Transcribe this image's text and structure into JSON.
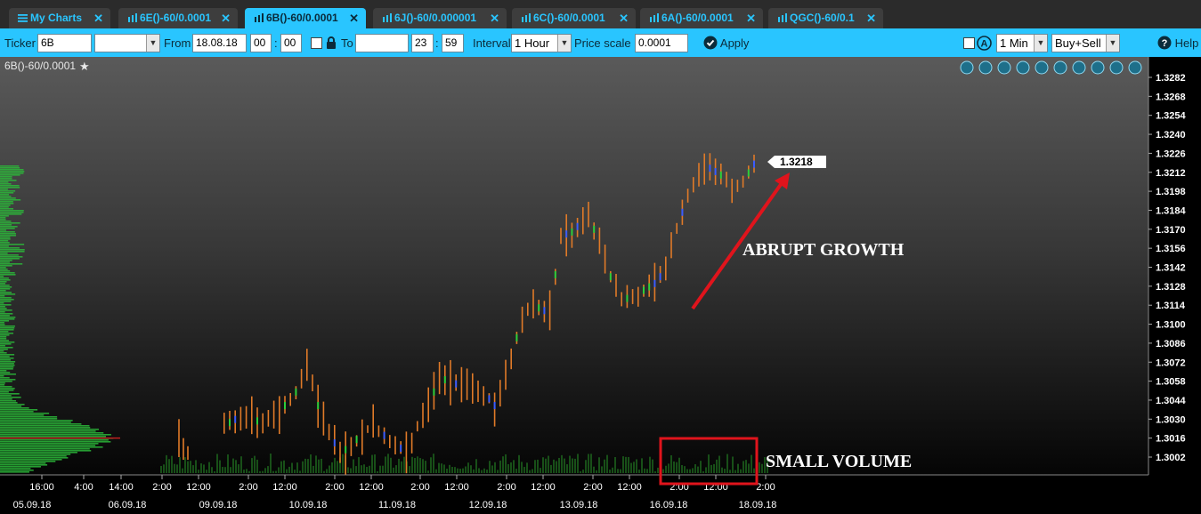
{
  "tabs": [
    {
      "label": "My Charts",
      "icon": "list-icon",
      "active": false
    },
    {
      "label": "6E()-60/0.0001",
      "icon": "bar-chart-icon",
      "active": false
    },
    {
      "label": "6B()-60/0.0001",
      "icon": "bar-chart-icon",
      "active": true
    },
    {
      "label": "6J()-60/0.000001",
      "icon": "bar-chart-icon",
      "active": false
    },
    {
      "label": "6C()-60/0.0001",
      "icon": "bar-chart-icon",
      "active": false
    },
    {
      "label": "6A()-60/0.0001",
      "icon": "bar-chart-icon",
      "active": false
    },
    {
      "label": "QGC()-60/0.1",
      "icon": "bar-chart-icon",
      "active": false
    }
  ],
  "toolbar": {
    "ticker_label": "Ticker",
    "ticker_value": "6B",
    "ticker_dropdown_value": "",
    "from_label": "From",
    "from_date": "18.08.18",
    "from_hour": "00",
    "from_minute": "00",
    "lock_icon": "lock-icon",
    "to_label": "To",
    "to_date": "",
    "to_hour": "23",
    "to_minute": "59",
    "time_sep": ":",
    "interval_label": "Interval",
    "interval_value": "1 Hour",
    "price_scale_label": "Price scale",
    "price_scale_value": "0.0001",
    "apply_label": "Apply",
    "period_value": "1 Min",
    "side_value": "Buy+Sell",
    "help_label": "Help"
  },
  "chart_title": "6B()-60/0.0001",
  "chart_tools": [
    "crosshair-icon",
    "zoom-in-icon",
    "zoom-out-icon",
    "grid-icon",
    "draw-icon",
    "refresh-icon",
    "settings-icon",
    "expand-icon",
    "close-icon",
    "dropdown-icon"
  ],
  "annotations": {
    "growth_label": "ABRUPT GROWTH",
    "volume_label": "SMALL VOLUME",
    "last_price": "1.3218"
  },
  "colors": {
    "accent": "#29c5ff",
    "candle": "#e07a28",
    "candle_buy": "#2ccf3a",
    "candle_sell": "#3a5cff",
    "annotation": "#e0141c",
    "volume": "#1f6e1f"
  },
  "chart_data": {
    "type": "bar",
    "description_of_series": "hourly price bars",
    "y_ticks": [
      "1.3282",
      "1.3268",
      "1.3254",
      "1.3240",
      "1.3226",
      "1.3212",
      "1.3198",
      "1.3184",
      "1.3170",
      "1.3156",
      "1.3142",
      "1.3128",
      "1.3114",
      "1.3100",
      "1.3086",
      "1.3072",
      "1.3058",
      "1.3044",
      "1.3030",
      "1.3016",
      "1.3002"
    ],
    "ylim": [
      1.2994,
      1.329
    ],
    "x_time_ticks": [
      "16:00",
      "4:00",
      "14:00",
      "2:00",
      "12:00",
      "2:00",
      "12:00",
      "2:00",
      "12:00",
      "2:00",
      "12:00",
      "2:00",
      "12:00",
      "2:00",
      "12:00",
      "2:00",
      "12:00",
      "2:00"
    ],
    "x_date_ticks": [
      "05.09.18",
      "06.09.18",
      "09.09.18",
      "10.09.18",
      "11.09.18",
      "12.09.18",
      "13.09.18",
      "16.09.18",
      "18.09.18"
    ],
    "price_path": [
      [
        0,
        1.3
      ],
      [
        13,
        1.3005
      ],
      [
        25,
        1.3032
      ],
      [
        27,
        1.3028
      ],
      [
        30,
        1.303
      ],
      [
        33,
        1.304
      ],
      [
        35,
        1.305
      ],
      [
        37,
        1.307
      ],
      [
        39,
        1.304
      ],
      [
        41,
        1.302
      ],
      [
        43,
        1.3005
      ],
      [
        45,
        1.301
      ],
      [
        47,
        1.302
      ],
      [
        49,
        1.3025
      ],
      [
        51,
        1.3018
      ],
      [
        53,
        1.3012
      ],
      [
        55,
        1.3005
      ],
      [
        57,
        1.3025
      ],
      [
        59,
        1.304
      ],
      [
        61,
        1.306
      ],
      [
        63,
        1.3058
      ],
      [
        66,
        1.3052
      ],
      [
        69,
        1.305
      ],
      [
        71,
        1.304
      ],
      [
        73,
        1.306
      ],
      [
        75,
        1.309
      ],
      [
        77,
        1.311
      ],
      [
        79,
        1.3112
      ],
      [
        81,
        1.3108
      ],
      [
        83,
        1.3165
      ],
      [
        85,
        1.3168
      ],
      [
        86,
        1.3172
      ],
      [
        88,
        1.318
      ],
      [
        90,
        1.316
      ],
      [
        92,
        1.3135
      ],
      [
        94,
        1.3118
      ],
      [
        96,
        1.312
      ],
      [
        98,
        1.3125
      ],
      [
        100,
        1.313
      ],
      [
        102,
        1.314
      ],
      [
        104,
        1.317
      ],
      [
        106,
        1.3195
      ],
      [
        108,
        1.3212
      ],
      [
        110,
        1.3215
      ],
      [
        112,
        1.321
      ],
      [
        114,
        1.32
      ],
      [
        116,
        1.3205
      ],
      [
        118,
        1.3218
      ]
    ],
    "volume_profile_peak": 1.3016
  }
}
